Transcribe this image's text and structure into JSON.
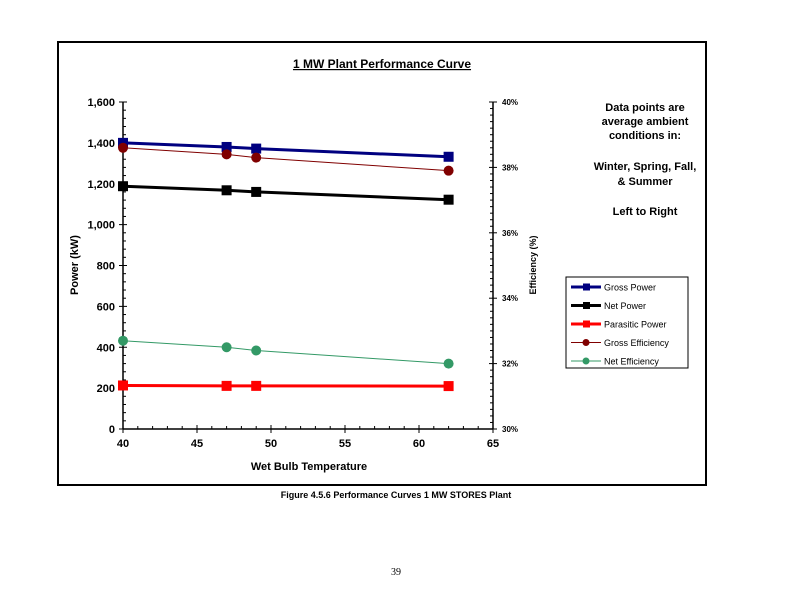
{
  "chart_data": {
    "type": "line",
    "title": "1 MW Plant Performance Curve",
    "xlabel": "Wet Bulb Temperature",
    "ylabel_left": "Power (kW)",
    "ylabel_right": "Efficiency (%)",
    "xlim": [
      40,
      65
    ],
    "ylim_left": [
      0,
      1600
    ],
    "ylim_right": [
      30,
      40
    ],
    "x_ticks": [
      "40",
      "45",
      "50",
      "55",
      "60",
      "65"
    ],
    "y_left_ticks": [
      "0",
      "200",
      "400",
      "600",
      "800",
      "1,000",
      "1,200",
      "1,400",
      "1,600"
    ],
    "y_right_ticks": [
      "30%",
      "32%",
      "34%",
      "36%",
      "38%",
      "40%"
    ],
    "x": [
      40,
      47,
      49,
      62
    ],
    "legend_position": "right",
    "series": [
      {
        "name": "Gross Power",
        "axis": "left",
        "values": [
          1400,
          1380,
          1372,
          1332
        ],
        "color": "#000080",
        "marker": "square"
      },
      {
        "name": "Net Power",
        "axis": "left",
        "values": [
          1188,
          1168,
          1160,
          1122
        ],
        "color": "#000000",
        "marker": "square"
      },
      {
        "name": "Parasitic Power",
        "axis": "left",
        "values": [
          213,
          211,
          211,
          210
        ],
        "color": "#ff0000",
        "marker": "square"
      },
      {
        "name": "Gross Efficiency",
        "axis": "right",
        "values": [
          38.6,
          38.4,
          38.3,
          37.9
        ],
        "color": "#800000",
        "marker": "circle"
      },
      {
        "name": "Net Efficiency",
        "axis": "right",
        "values": [
          32.7,
          32.5,
          32.4,
          32.0
        ],
        "color": "#339966",
        "marker": "circle"
      }
    ]
  },
  "annotation": {
    "line1": "Data points are",
    "line2": "average ambient",
    "line3": "conditions in:",
    "line4": "Winter, Spring, Fall,",
    "line5": "& Summer",
    "line6": "Left to Right"
  },
  "caption": "Figure 4.5.6  Performance Curves 1 MW STORES Plant",
  "page_number": "39"
}
